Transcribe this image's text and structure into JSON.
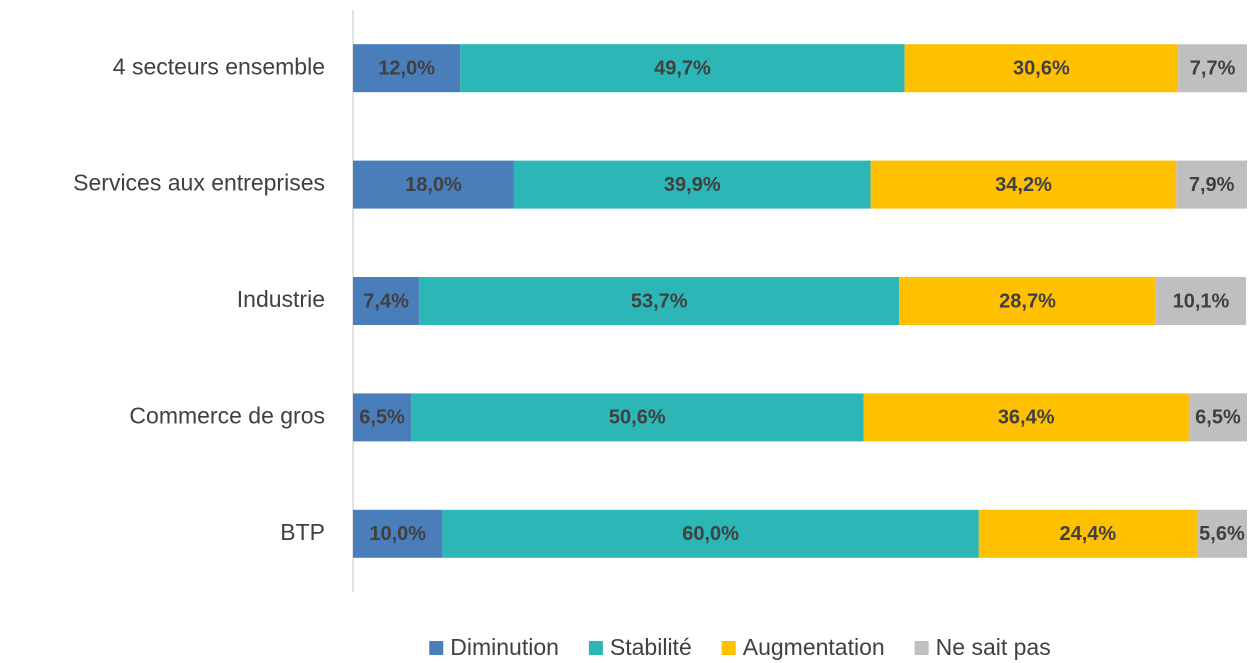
{
  "chart_data": {
    "type": "stacked_bar_horizontal",
    "categories": [
      "4 secteurs ensemble",
      "Services aux entreprises",
      "Industrie",
      "Commerce de gros",
      "BTP"
    ],
    "xlim": [
      0,
      100
    ],
    "legend": "bottom",
    "series": [
      {
        "name": "Diminution",
        "color": "#4a7ebb",
        "values": [
          12.0,
          18.0,
          7.4,
          6.5,
          10.0
        ],
        "value_labels": [
          "12,0%",
          "18,0%",
          "7,4%",
          "6,5%",
          "10,0%"
        ]
      },
      {
        "name": "Stabilité",
        "color": "#2db6b6",
        "values": [
          49.7,
          39.9,
          53.7,
          50.6,
          60.0
        ],
        "value_labels": [
          "49,7%",
          "39,9%",
          "53,7%",
          "50,6%",
          "60,0%"
        ]
      },
      {
        "name": "Augmentation",
        "color": "#ffc000",
        "values": [
          30.6,
          34.2,
          28.7,
          36.4,
          24.4
        ],
        "value_labels": [
          "30,6%",
          "34,2%",
          "28,7%",
          "36,4%",
          "24,4%"
        ]
      },
      {
        "name": "Ne sait pas",
        "color": "#bfbfbf",
        "values": [
          7.7,
          7.9,
          10.1,
          6.5,
          5.6
        ],
        "value_labels": [
          "7,7%",
          "7,9%",
          "10,1%",
          "6,5%",
          "5,6%"
        ]
      }
    ]
  }
}
